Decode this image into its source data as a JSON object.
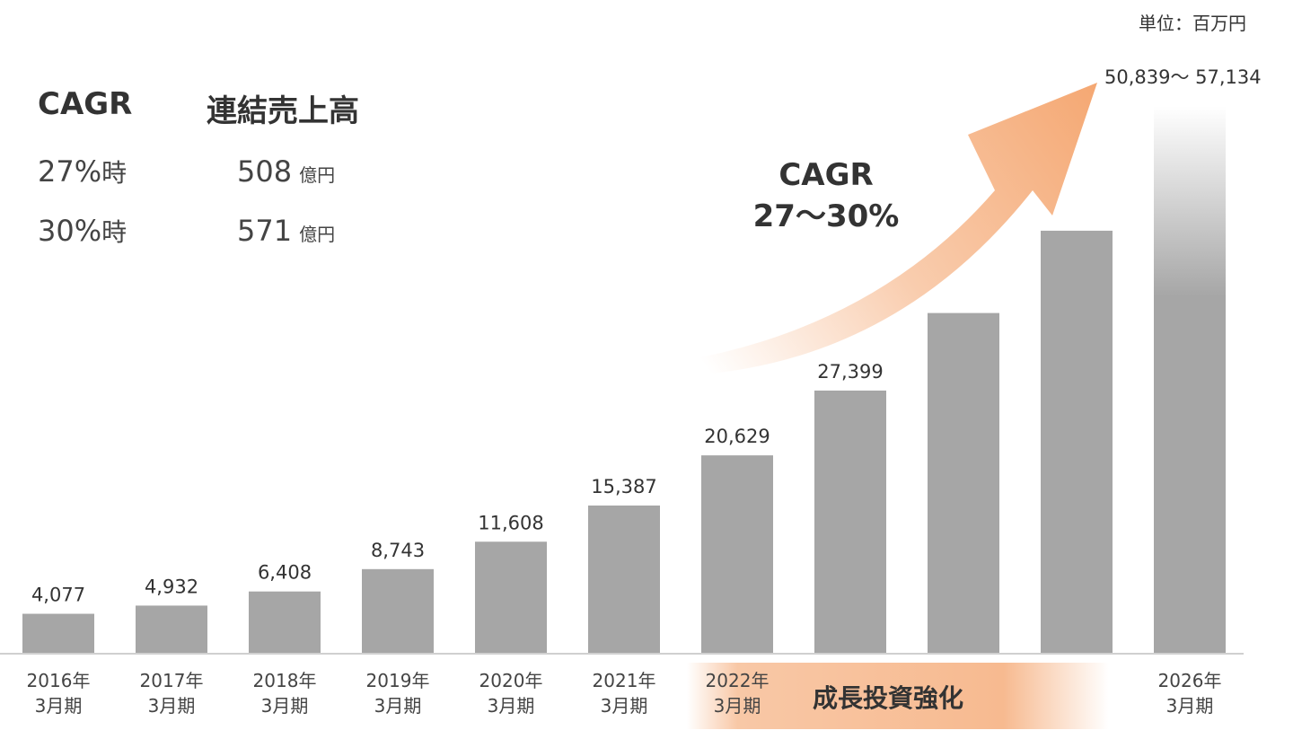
{
  "unit_label": "単位：百万円",
  "legend": {
    "col1": "CAGR",
    "col2": "連結売上高",
    "rows": [
      {
        "rate": "27%",
        "suffix": "時",
        "amount": "508",
        "unit": "億円"
      },
      {
        "rate": "30%",
        "suffix": "時",
        "amount": "571",
        "unit": "億円"
      }
    ]
  },
  "arrow_label": {
    "line1": "CAGR",
    "line2": "27～30%"
  },
  "invest_label": "成長投資強化",
  "range_label": "50,839～ 57,134",
  "colors": {
    "bar": "#a6a6a6",
    "arrow": "#f4a36b",
    "axis": "#d0d0d0"
  },
  "chart_data": {
    "type": "bar",
    "categories": [
      "2016年\n3月期",
      "2017年\n3月期",
      "2018年\n3月期",
      "2019年\n3月期",
      "2020年\n3月期",
      "2021年\n3月期",
      "2022年\n3月期",
      "",
      "",
      "",
      "2026年\n3月期"
    ],
    "values": [
      4077,
      4932,
      6408,
      8743,
      11608,
      15387,
      20629,
      27399,
      35500,
      44100,
      57134
    ],
    "data_labels": [
      "4,077",
      "4,932",
      "6,408",
      "8,743",
      "11,608",
      "15,387",
      "20,629",
      "27,399",
      "",
      "",
      ""
    ],
    "ylim": [
      0,
      57134
    ],
    "grid": false,
    "legend": "none"
  }
}
